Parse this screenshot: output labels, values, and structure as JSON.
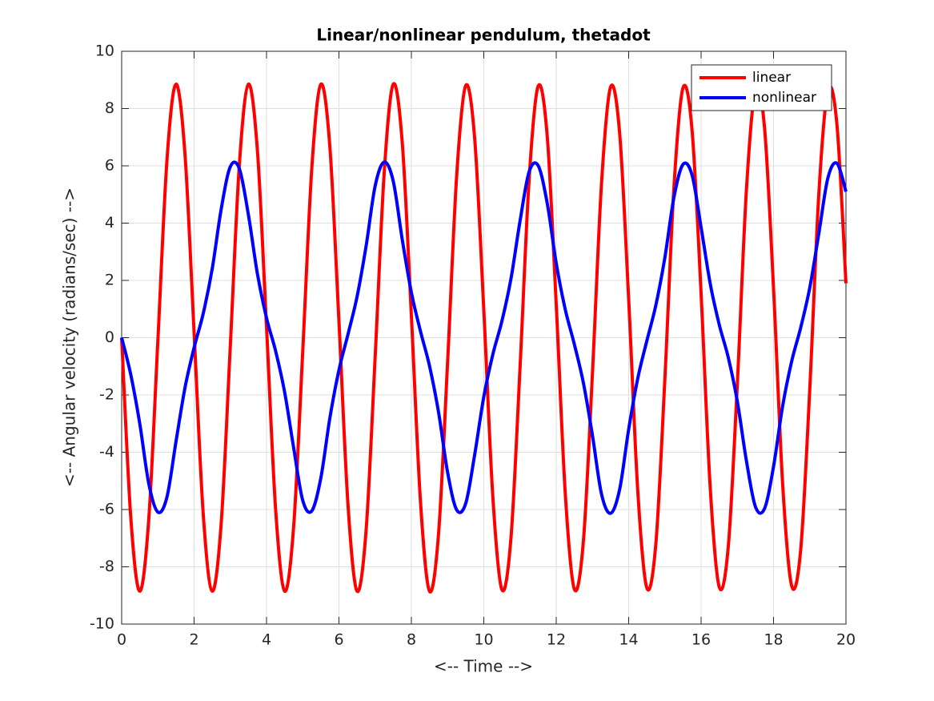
{
  "chart_data": {
    "type": "line",
    "title": "Linear/nonlinear pendulum, thetadot",
    "xlabel": "<-- Time -->",
    "ylabel": "<-- Angular velocity (radians/sec) -->",
    "x": [
      0,
      0.25,
      0.5,
      0.75,
      1,
      1.25,
      1.5,
      1.75,
      2,
      2.25,
      2.5,
      2.75,
      3,
      3.25,
      3.5,
      3.75,
      4,
      4.25,
      4.5,
      4.75,
      5,
      5.25,
      5.5,
      5.75,
      6,
      6.25,
      6.5,
      6.75,
      7,
      7.25,
      7.5,
      7.75,
      8,
      8.25,
      8.5,
      8.75,
      9,
      9.25,
      9.5,
      9.75,
      10,
      10.25,
      10.5,
      10.75,
      11,
      11.25,
      11.5,
      11.75,
      12,
      12.25,
      12.5,
      12.75,
      13,
      13.25,
      13.5,
      13.75,
      14,
      14.25,
      14.5,
      14.75,
      15,
      15.25,
      15.5,
      15.75,
      16,
      16.25,
      16.5,
      16.75,
      17,
      17.25,
      17.5,
      17.75,
      18,
      18.25,
      18.5,
      18.75,
      19,
      19.25,
      19.5,
      19.75,
      20
    ],
    "series": [
      {
        "name": "linear",
        "color": "#ff0000",
        "values": [
          0,
          -6.24,
          -8.85,
          -6.31,
          -0.1,
          6.18,
          8.85,
          6.38,
          0.19,
          -6.11,
          -8.85,
          -6.45,
          -0.29,
          6.04,
          8.85,
          6.51,
          0.38,
          -5.97,
          -8.85,
          -6.58,
          -0.48,
          5.91,
          8.85,
          6.65,
          0.57,
          -5.84,
          -8.85,
          -6.72,
          -0.67,
          5.77,
          8.85,
          6.78,
          0.76,
          -5.7,
          -8.85,
          -6.85,
          -0.86,
          5.64,
          8.8,
          6.92,
          0.96,
          -5.57,
          -8.8,
          -6.99,
          -1.05,
          5.5,
          8.78,
          7.05,
          1.15,
          -5.45,
          -8.78,
          -7.1,
          -1.24,
          5.38,
          8.75,
          7.15,
          1.34,
          -5.32,
          -8.73,
          -7.2,
          -1.43,
          5.25,
          8.72,
          7.25,
          1.53,
          -5.2,
          -8.7,
          -7.3,
          -1.62,
          5.13,
          8.68,
          7.35,
          1.72,
          -5.07,
          -8.66,
          -7.4,
          -1.81,
          5,
          8.64,
          7.45,
          1.9
        ]
      },
      {
        "name": "nonlinear",
        "color": "#0000ff",
        "values": [
          0,
          -1.28,
          -3,
          -5.1,
          -6.09,
          -5.57,
          -3.63,
          -1.74,
          -0.35,
          0.83,
          2.4,
          4.5,
          5.97,
          5.9,
          4.29,
          2.22,
          0.69,
          -0.46,
          -1.9,
          -3.85,
          -5.68,
          -6.05,
          -4.9,
          -2.8,
          -1.13,
          0.12,
          1.43,
          3.2,
          5.3,
          6.13,
          5.46,
          3.41,
          1.58,
          0.23,
          -0.98,
          -2.6,
          -4.7,
          -6.01,
          -5.79,
          -4.07,
          -2.06,
          -0.58,
          0.58,
          2.06,
          4.07,
          5.79,
          6.01,
          4.7,
          2.6,
          0.98,
          -0.23,
          -1.58,
          -3.41,
          -5.46,
          -6.13,
          -5.3,
          -3.2,
          -1.43,
          -0.12,
          1.13,
          2.8,
          4.9,
          6.05,
          5.68,
          3.85,
          1.9,
          0.46,
          -0.69,
          -2.22,
          -4.29,
          -5.9,
          -5.97,
          -4.5,
          -2.4,
          -0.83,
          0.35,
          1.74,
          3.63,
          5.57,
          6.09,
          5.1
        ]
      }
    ],
    "xlim": [
      0,
      20
    ],
    "xticks": [
      0,
      2,
      4,
      6,
      8,
      10,
      12,
      14,
      16,
      18,
      20
    ],
    "ylim": [
      -10,
      10
    ],
    "yticks": [
      -10,
      -8,
      -6,
      -4,
      -2,
      0,
      2,
      4,
      6,
      8,
      10
    ],
    "grid": true,
    "legend": "northeast"
  }
}
